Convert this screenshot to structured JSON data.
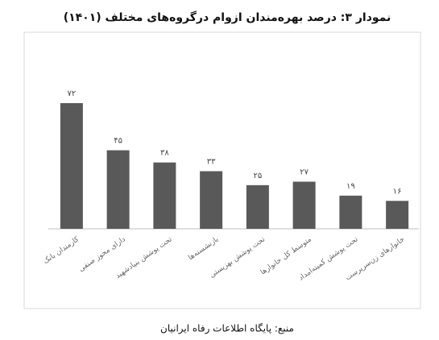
{
  "chart_data": {
    "type": "bar",
    "title": "نمودار ۳: درصد بهره‌مندان ازوام درگروه‌های مختلف (۱۴۰۱)",
    "categories": [
      "کارمندان بانک",
      "دارای مجوز صنفی",
      "تحت پوشش بنیادشهید",
      "بازنشسته‌ها",
      "تحت پوشش بهزیستی",
      "متوسط کل خانوارها",
      "تحت پوشش کمیته‌امداد",
      "خانوارهای زن‌سرپرست"
    ],
    "values": [
      72,
      45,
      38,
      33,
      25,
      27,
      19,
      16
    ],
    "value_labels": [
      "۷۲",
      "۴۵",
      "۳۸",
      "۳۳",
      "۲۵",
      "۲۷",
      "۱۹",
      "۱۶"
    ],
    "color": "#595959",
    "source": "منبع: پایگاه اطلاعات رفاه ایرانیان"
  }
}
